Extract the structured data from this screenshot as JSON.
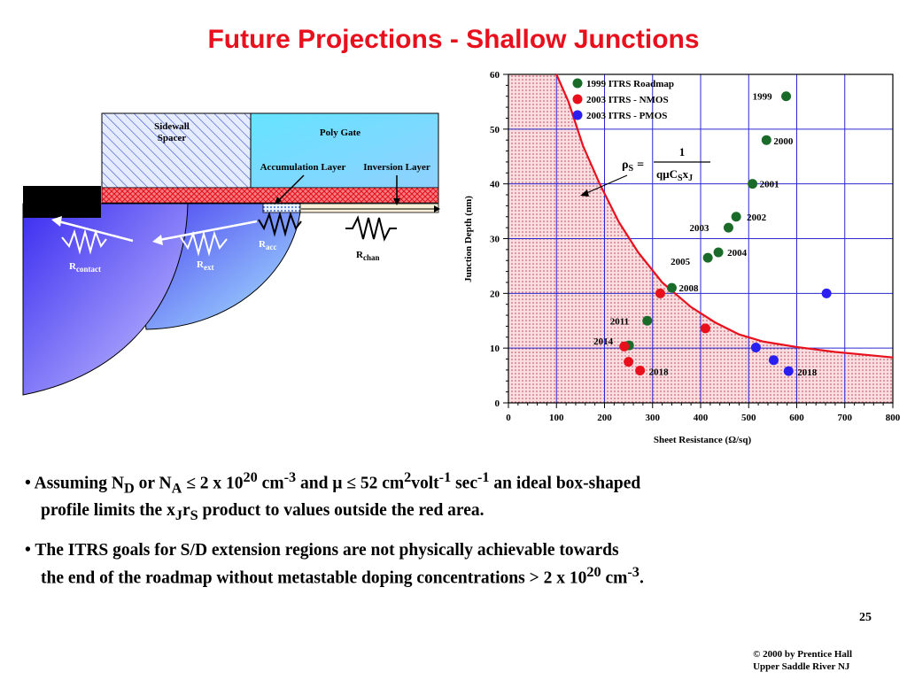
{
  "title": "Future Projections - Shallow  Junctions",
  "diagram": {
    "sidewall_label_1": "Sidewall",
    "sidewall_label_2": "Spacer",
    "poly_gate": "Poly Gate",
    "accumulation_layer": "Accumulation Layer",
    "inversion_layer": "Inversion Layer",
    "r_contact": "R",
    "r_contact_sub": "contact",
    "r_ext": "R",
    "r_ext_sub": "ext",
    "r_acc": "R",
    "r_acc_sub": "acc",
    "r_chan": "R",
    "r_chan_sub": "chan",
    "colors": {
      "gate": "#64e0ff",
      "spacer": "#b9c8ff",
      "oxide": "#e8101c",
      "junction": "#5a46f0"
    }
  },
  "chart_data": {
    "type": "scatter",
    "xlabel": "Sheet Resistance (Ω/sq)",
    "ylabel": "Junction Depth (nm)",
    "xlim": [
      0,
      800
    ],
    "ylim": [
      0,
      60
    ],
    "xticks": [
      "0",
      "100",
      "200",
      "300",
      "400",
      "500",
      "600",
      "700",
      "800"
    ],
    "yticks": [
      "0",
      "10",
      "20",
      "30",
      "40",
      "50",
      "60"
    ],
    "grid": true,
    "legend_placement": "top-left",
    "formula": {
      "lhs": "ρ",
      "lhs_sub": "S",
      "eq": "=",
      "numerator": "1",
      "denominator": "qμC",
      "den_sub1": "S",
      "den_x": "x",
      "den_sub2": "J"
    },
    "series": [
      {
        "name": "1999 ITRS Roadmap",
        "color": "#1a6b2a",
        "points": [
          {
            "x": 578,
            "y": 56,
            "label": "1999"
          },
          {
            "x": 537,
            "y": 48,
            "label": "2000"
          },
          {
            "x": 508,
            "y": 40,
            "label": "2001"
          },
          {
            "x": 474,
            "y": 34,
            "label": "2002"
          },
          {
            "x": 458,
            "y": 32,
            "label": "2003"
          },
          {
            "x": 437,
            "y": 27.5,
            "label": "2004"
          },
          {
            "x": 415,
            "y": 26.5,
            "label": "2005"
          },
          {
            "x": 340,
            "y": 21,
            "label": "2008"
          },
          {
            "x": 289,
            "y": 15,
            "label": "2011"
          },
          {
            "x": 251,
            "y": 10.5,
            "label": "2014"
          }
        ]
      },
      {
        "name": "2003 ITRS - NMOS",
        "color": "#e8101c",
        "points": [
          {
            "x": 316,
            "y": 20
          },
          {
            "x": 410,
            "y": 13.6
          },
          {
            "x": 241,
            "y": 10.3
          },
          {
            "x": 250,
            "y": 7.5
          },
          {
            "x": 274,
            "y": 5.9,
            "label": "2018"
          }
        ]
      },
      {
        "name": "2003 ITRS - PMOS",
        "color": "#2a1ff0",
        "points": [
          {
            "x": 662,
            "y": 20
          },
          {
            "x": 515,
            "y": 10.1
          },
          {
            "x": 552,
            "y": 7.8
          },
          {
            "x": 583,
            "y": 5.8,
            "label": "2018"
          }
        ]
      }
    ],
    "boundary_curve": {
      "color": "#e8101c",
      "points": [
        [
          100,
          60
        ],
        [
          125,
          55
        ],
        [
          155,
          47
        ],
        [
          190,
          40
        ],
        [
          230,
          33
        ],
        [
          270,
          27.5
        ],
        [
          320,
          22
        ],
        [
          380,
          17.5
        ],
        [
          430,
          14.7
        ],
        [
          480,
          12.5
        ],
        [
          530,
          11.2
        ],
        [
          600,
          10.2
        ],
        [
          680,
          9.3
        ],
        [
          740,
          8.8
        ],
        [
          800,
          8.3
        ]
      ]
    },
    "region_color": "#f3cfd4"
  },
  "bullets": {
    "b1": {
      "line1_a": "• Assuming N",
      "sub_d": "D",
      "line1_b": " or N",
      "sub_a": "A",
      "line1_c": " ≤ 2 x 10",
      "sup_20": "20",
      "line1_d": " cm",
      "sup_m3": "-3",
      "line1_e": " and μ ≤ 52 cm",
      "sup_2": "2",
      "line1_f": "volt",
      "sup_m1a": "-1",
      "line1_g": " sec",
      "sup_m1b": "-1",
      "line1_h": " an ideal box-shaped",
      "line2_a": "profile limits the x",
      "sub_j": "J",
      "line2_b": "r",
      "sub_s": "S",
      "line2_c": " product to values outside the red area."
    },
    "b2": {
      "line1": "• The ITRS goals for S/D extension regions are not physically achievable towards",
      "line2_a": "the end of the roadmap without metastable doping concentrations > 2 x 10",
      "sup_20": "20",
      "line2_b": " cm",
      "sup_m3": "-3",
      "line2_c": "."
    }
  },
  "page_number": "25",
  "copyright_1": "© 2000 by Prentice Hall",
  "copyright_2": "Upper Saddle River NJ"
}
